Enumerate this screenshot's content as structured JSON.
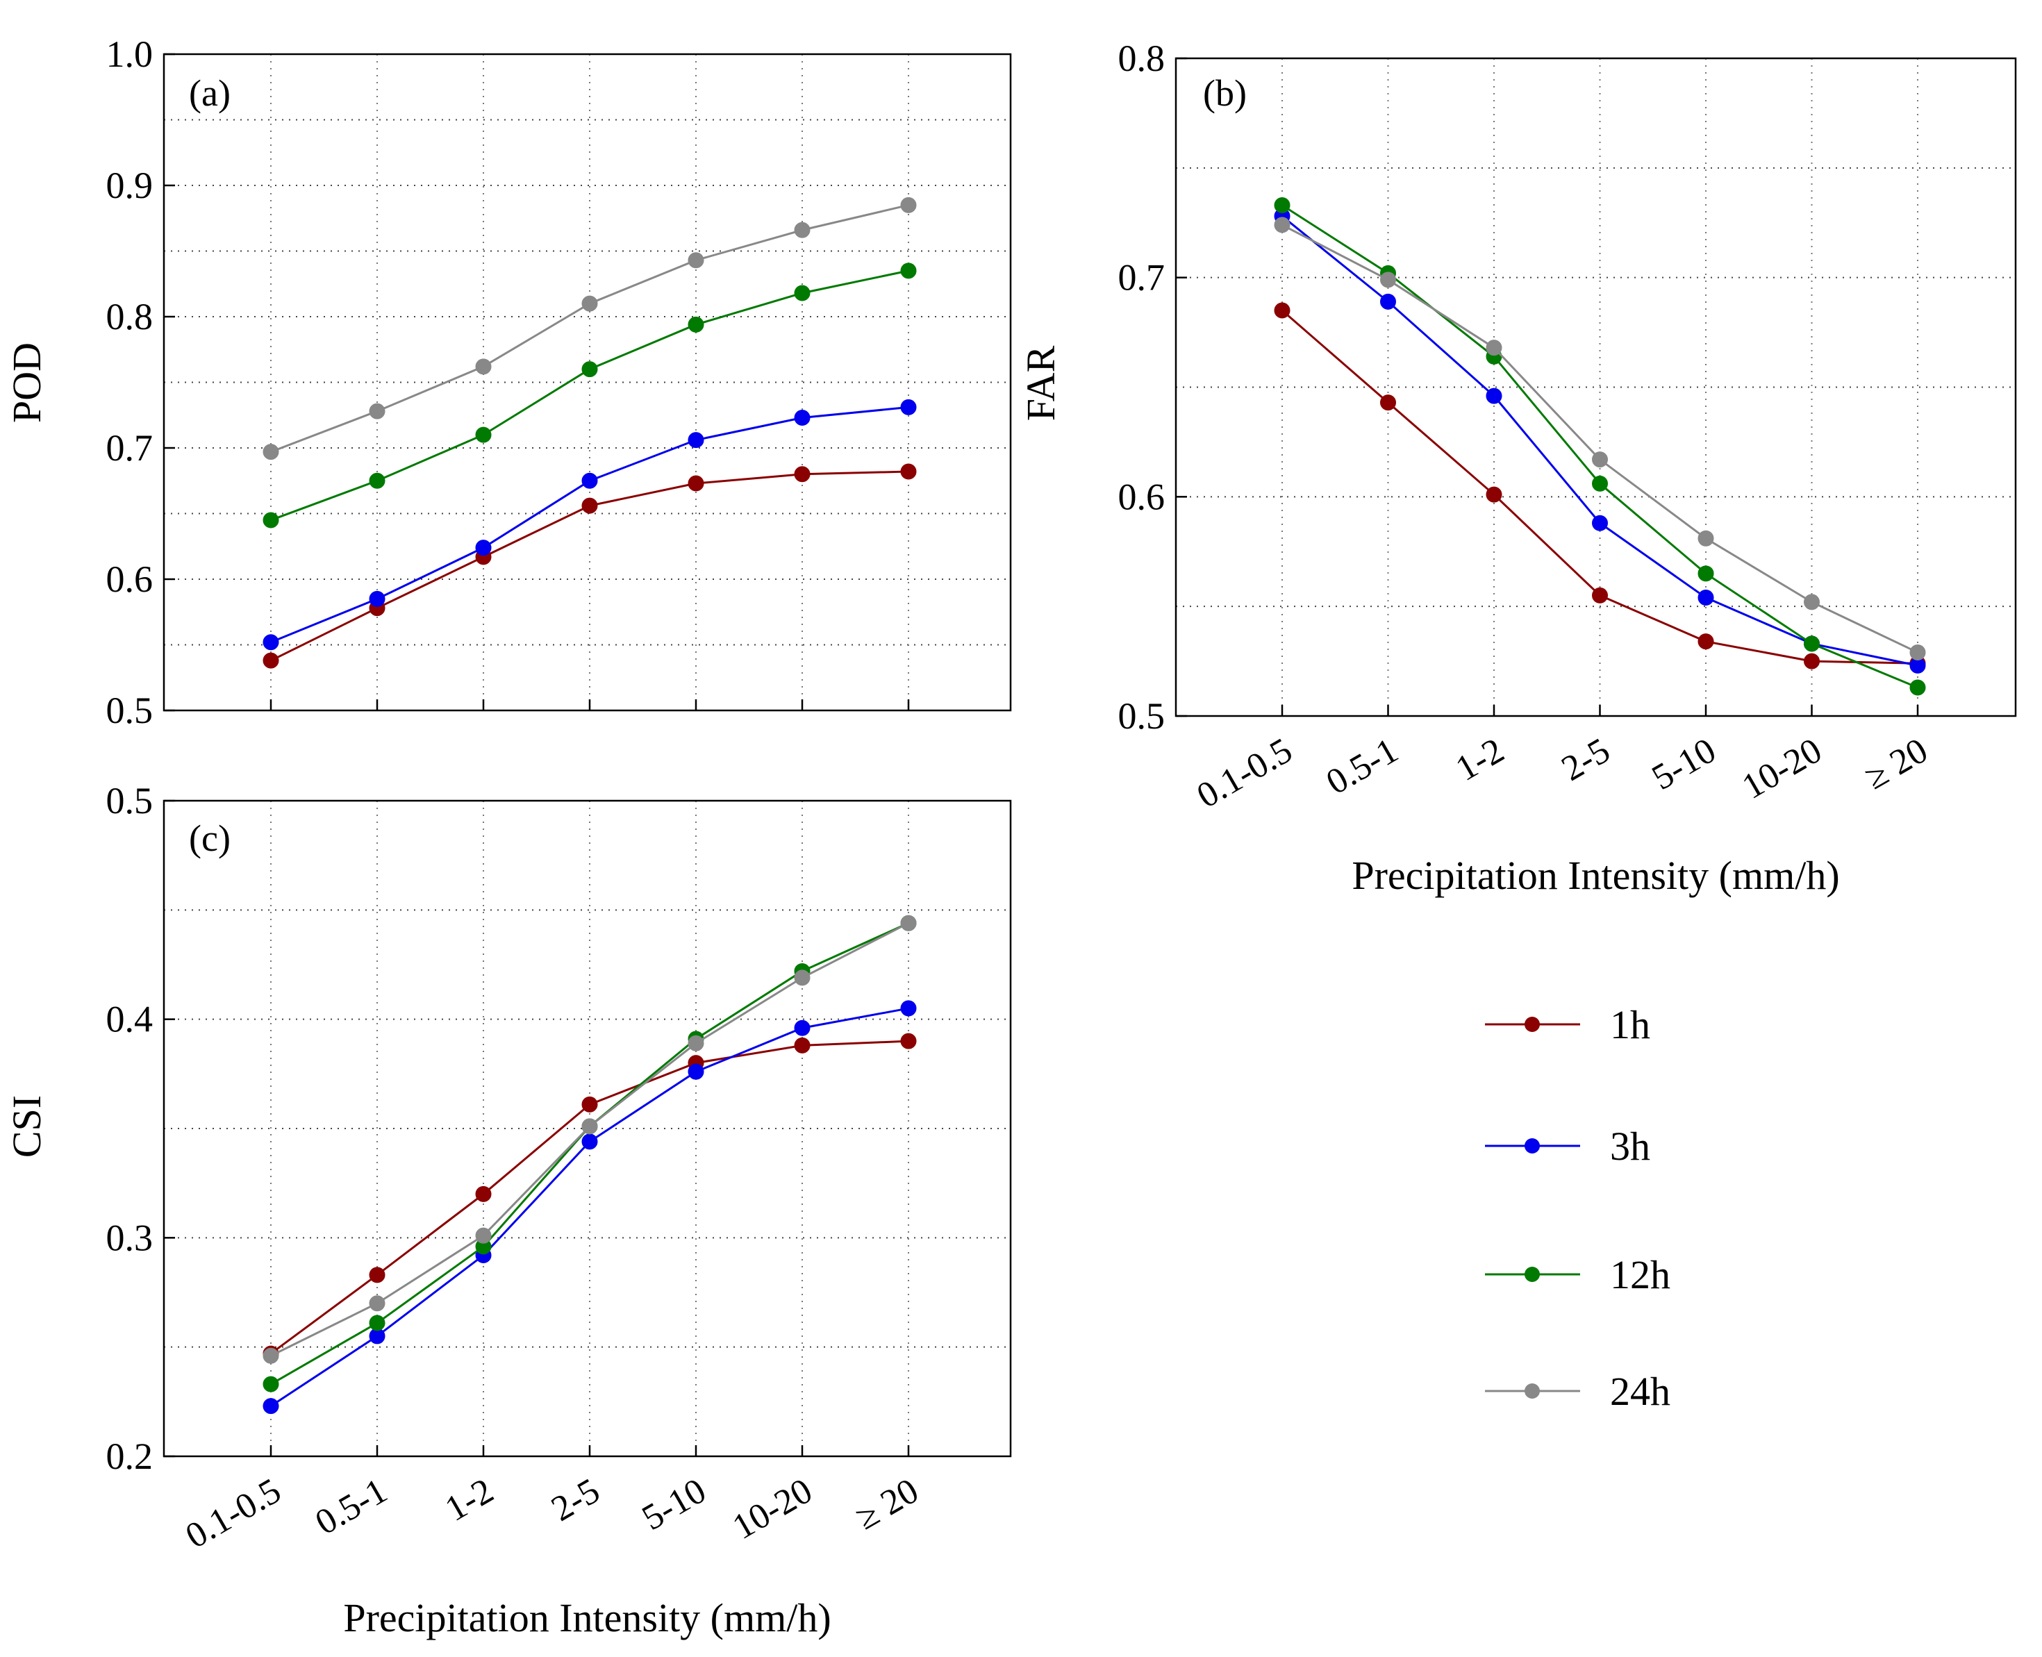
{
  "chart_data": [
    {
      "panel": "(a)",
      "type": "line",
      "ylabel": "POD",
      "xlabel": "",
      "categories": [
        "0.1-0.5",
        "0.5-1",
        "1-2",
        "2-5",
        "5-10",
        "10-20",
        "≥ 20"
      ],
      "ylim": [
        0.5,
        1.0
      ],
      "yticks": [
        "0.5",
        "0.6",
        "0.7",
        "0.8",
        "0.9",
        "1.0"
      ],
      "grid": true,
      "series": [
        {
          "name": "1h",
          "color": "#8b0000",
          "values": [
            0.538,
            0.578,
            0.617,
            0.656,
            0.673,
            0.68,
            0.682
          ]
        },
        {
          "name": "3h",
          "color": "#0000ee",
          "values": [
            0.552,
            0.585,
            0.624,
            0.675,
            0.706,
            0.723,
            0.731
          ]
        },
        {
          "name": "12h",
          "color": "#007a00",
          "values": [
            0.645,
            0.675,
            0.71,
            0.76,
            0.794,
            0.818,
            0.835
          ]
        },
        {
          "name": "24h",
          "color": "#888888",
          "values": [
            0.697,
            0.728,
            0.762,
            0.81,
            0.843,
            0.866,
            0.885
          ]
        }
      ]
    },
    {
      "panel": "(b)",
      "type": "line",
      "ylabel": "FAR",
      "xlabel": "Precipitation Intensity (mm/h)",
      "categories": [
        "0.1-0.5",
        "0.5-1",
        "1-2",
        "2-5",
        "5-10",
        "10-20",
        "≥ 20"
      ],
      "ylim": [
        0.5,
        0.8
      ],
      "yticks": [
        "0.5",
        "0.6",
        "0.7",
        "0.8"
      ],
      "grid": true,
      "series": [
        {
          "name": "1h",
          "color": "#8b0000",
          "values": [
            0.685,
            0.643,
            0.601,
            0.555,
            0.534,
            0.525,
            0.524
          ]
        },
        {
          "name": "3h",
          "color": "#0000ee",
          "values": [
            0.728,
            0.689,
            0.646,
            0.588,
            0.554,
            0.533,
            0.523
          ]
        },
        {
          "name": "12h",
          "color": "#007a00",
          "values": [
            0.733,
            0.702,
            0.664,
            0.606,
            0.565,
            0.533,
            0.513
          ]
        },
        {
          "name": "24h",
          "color": "#888888",
          "values": [
            0.724,
            0.699,
            0.668,
            0.617,
            0.581,
            0.552,
            0.529
          ]
        }
      ]
    },
    {
      "panel": "(c)",
      "type": "line",
      "ylabel": "CSI",
      "xlabel": "Precipitation Intensity (mm/h)",
      "categories": [
        "0.1-0.5",
        "0.5-1",
        "1-2",
        "2-5",
        "5-10",
        "10-20",
        "≥ 20"
      ],
      "ylim": [
        0.2,
        0.5
      ],
      "yticks": [
        "0.2",
        "0.3",
        "0.4",
        "0.5"
      ],
      "grid": true,
      "series": [
        {
          "name": "1h",
          "color": "#8b0000",
          "values": [
            0.247,
            0.283,
            0.32,
            0.361,
            0.38,
            0.388,
            0.39
          ]
        },
        {
          "name": "3h",
          "color": "#0000ee",
          "values": [
            0.223,
            0.255,
            0.292,
            0.344,
            0.376,
            0.396,
            0.405
          ]
        },
        {
          "name": "12h",
          "color": "#007a00",
          "values": [
            0.233,
            0.261,
            0.296,
            0.351,
            0.391,
            0.422,
            0.444
          ]
        },
        {
          "name": "24h",
          "color": "#888888",
          "values": [
            0.246,
            0.27,
            0.301,
            0.351,
            0.389,
            0.419,
            0.444
          ]
        }
      ]
    }
  ],
  "legend": {
    "placement": "bottom-right",
    "items": [
      {
        "label": "1h",
        "color": "#8b0000"
      },
      {
        "label": "3h",
        "color": "#0000ee"
      },
      {
        "label": "12h",
        "color": "#007a00"
      },
      {
        "label": "24h",
        "color": "#888888"
      }
    ]
  }
}
